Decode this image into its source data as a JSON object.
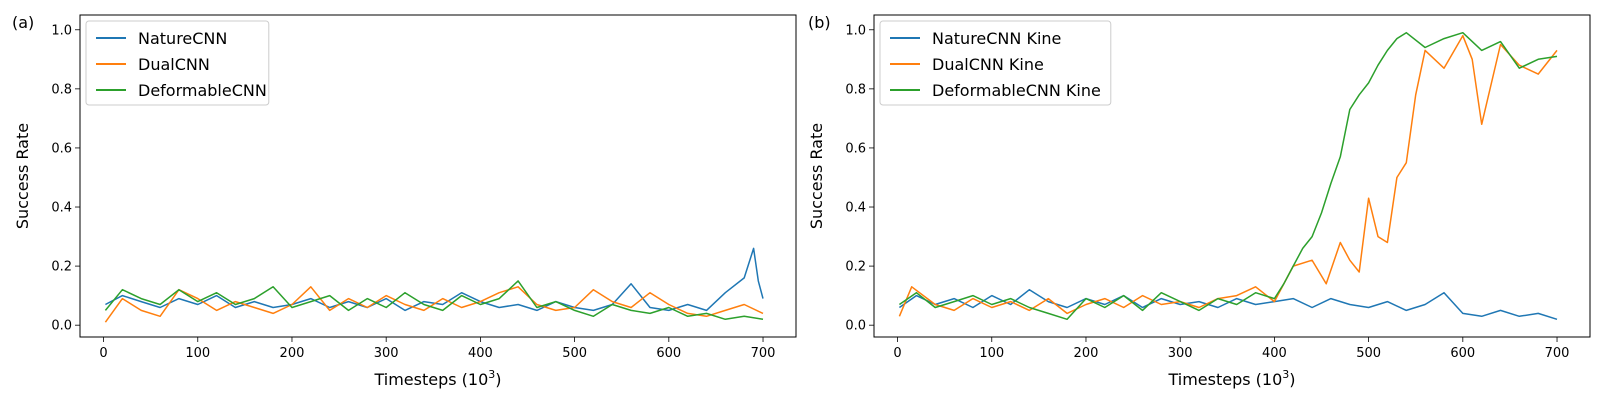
{
  "chart_data": [
    {
      "panel_label": "(a)",
      "type": "line",
      "xlabel": "Timesteps (10",
      "xlabel_sup": "3",
      "xlabel_close": ")",
      "ylabel": "Success Rate",
      "xlim": [
        -25,
        735
      ],
      "ylim": [
        -0.04,
        1.05
      ],
      "xticks": [
        0,
        100,
        200,
        300,
        400,
        500,
        600,
        700
      ],
      "yticks": [
        0.0,
        0.2,
        0.4,
        0.6,
        0.8,
        1.0
      ],
      "grid": false,
      "legend_position": "top-left",
      "series": [
        {
          "name": "NatureCNN",
          "color": "#1f77b4",
          "x": [
            2,
            20,
            40,
            60,
            80,
            100,
            120,
            140,
            160,
            180,
            200,
            220,
            240,
            260,
            280,
            300,
            320,
            340,
            360,
            380,
            400,
            420,
            440,
            460,
            480,
            500,
            520,
            540,
            560,
            580,
            600,
            620,
            640,
            660,
            680,
            690,
            695,
            700
          ],
          "values": [
            0.07,
            0.1,
            0.08,
            0.06,
            0.09,
            0.07,
            0.1,
            0.06,
            0.08,
            0.06,
            0.07,
            0.09,
            0.06,
            0.08,
            0.06,
            0.09,
            0.05,
            0.08,
            0.07,
            0.11,
            0.08,
            0.06,
            0.07,
            0.05,
            0.08,
            0.06,
            0.05,
            0.07,
            0.14,
            0.06,
            0.05,
            0.07,
            0.05,
            0.11,
            0.16,
            0.26,
            0.15,
            0.09
          ]
        },
        {
          "name": "DualCNN",
          "color": "#ff7f0e",
          "x": [
            2,
            20,
            40,
            60,
            80,
            100,
            120,
            140,
            160,
            180,
            200,
            220,
            240,
            260,
            280,
            300,
            320,
            340,
            360,
            380,
            400,
            420,
            440,
            460,
            480,
            500,
            520,
            540,
            560,
            580,
            600,
            620,
            640,
            660,
            680,
            700
          ],
          "values": [
            0.01,
            0.09,
            0.05,
            0.03,
            0.12,
            0.09,
            0.05,
            0.08,
            0.06,
            0.04,
            0.07,
            0.13,
            0.05,
            0.09,
            0.06,
            0.1,
            0.07,
            0.05,
            0.09,
            0.06,
            0.08,
            0.11,
            0.13,
            0.07,
            0.05,
            0.06,
            0.12,
            0.08,
            0.06,
            0.11,
            0.07,
            0.04,
            0.03,
            0.05,
            0.07,
            0.04
          ]
        },
        {
          "name": "DeformableCNN",
          "color": "#2ca02c",
          "x": [
            2,
            20,
            40,
            60,
            80,
            100,
            120,
            140,
            160,
            180,
            200,
            220,
            240,
            260,
            280,
            300,
            320,
            340,
            360,
            380,
            400,
            420,
            440,
            460,
            480,
            500,
            520,
            540,
            560,
            580,
            600,
            620,
            640,
            660,
            680,
            700
          ],
          "values": [
            0.05,
            0.12,
            0.09,
            0.07,
            0.12,
            0.08,
            0.11,
            0.07,
            0.09,
            0.13,
            0.06,
            0.08,
            0.1,
            0.05,
            0.09,
            0.06,
            0.11,
            0.07,
            0.05,
            0.1,
            0.07,
            0.09,
            0.15,
            0.06,
            0.08,
            0.05,
            0.03,
            0.07,
            0.05,
            0.04,
            0.06,
            0.03,
            0.04,
            0.02,
            0.03,
            0.02
          ]
        }
      ]
    },
    {
      "panel_label": "(b)",
      "type": "line",
      "xlabel": "Timesteps (10",
      "xlabel_sup": "3",
      "xlabel_close": ")",
      "ylabel": "Success Rate",
      "xlim": [
        -25,
        735
      ],
      "ylim": [
        -0.04,
        1.05
      ],
      "xticks": [
        0,
        100,
        200,
        300,
        400,
        500,
        600,
        700
      ],
      "yticks": [
        0.0,
        0.2,
        0.4,
        0.6,
        0.8,
        1.0
      ],
      "grid": false,
      "legend_position": "top-left",
      "series": [
        {
          "name": "NatureCNN Kine",
          "color": "#1f77b4",
          "x": [
            2,
            20,
            40,
            60,
            80,
            100,
            120,
            140,
            160,
            180,
            200,
            220,
            240,
            260,
            280,
            300,
            320,
            340,
            360,
            380,
            400,
            420,
            440,
            460,
            480,
            500,
            520,
            540,
            560,
            580,
            600,
            620,
            640,
            660,
            680,
            700
          ],
          "values": [
            0.06,
            0.1,
            0.07,
            0.09,
            0.06,
            0.1,
            0.07,
            0.12,
            0.08,
            0.06,
            0.09,
            0.07,
            0.1,
            0.06,
            0.09,
            0.07,
            0.08,
            0.06,
            0.09,
            0.07,
            0.08,
            0.09,
            0.06,
            0.09,
            0.07,
            0.06,
            0.08,
            0.05,
            0.07,
            0.11,
            0.04,
            0.03,
            0.05,
            0.03,
            0.04,
            0.02
          ]
        },
        {
          "name": "DualCNN Kine",
          "color": "#ff7f0e",
          "x": [
            2,
            15,
            40,
            60,
            80,
            100,
            120,
            140,
            160,
            180,
            200,
            220,
            240,
            260,
            280,
            300,
            320,
            340,
            360,
            380,
            400,
            420,
            440,
            455,
            470,
            480,
            490,
            500,
            510,
            520,
            530,
            540,
            550,
            560,
            580,
            600,
            610,
            620,
            640,
            660,
            680,
            700
          ],
          "values": [
            0.03,
            0.13,
            0.07,
            0.05,
            0.09,
            0.06,
            0.08,
            0.05,
            0.09,
            0.04,
            0.07,
            0.09,
            0.06,
            0.1,
            0.07,
            0.08,
            0.06,
            0.09,
            0.1,
            0.13,
            0.08,
            0.2,
            0.22,
            0.14,
            0.28,
            0.22,
            0.18,
            0.43,
            0.3,
            0.28,
            0.5,
            0.55,
            0.78,
            0.93,
            0.87,
            0.98,
            0.9,
            0.68,
            0.95,
            0.88,
            0.85,
            0.93
          ]
        },
        {
          "name": "DeformableCNN Kine",
          "color": "#2ca02c",
          "x": [
            2,
            20,
            40,
            60,
            80,
            100,
            120,
            140,
            160,
            180,
            200,
            220,
            240,
            260,
            280,
            300,
            320,
            340,
            360,
            380,
            400,
            410,
            420,
            430,
            440,
            450,
            460,
            470,
            480,
            490,
            500,
            510,
            520,
            530,
            540,
            560,
            580,
            600,
            620,
            640,
            660,
            680,
            700
          ],
          "values": [
            0.07,
            0.11,
            0.06,
            0.08,
            0.1,
            0.07,
            0.09,
            0.06,
            0.04,
            0.02,
            0.09,
            0.06,
            0.1,
            0.05,
            0.11,
            0.08,
            0.05,
            0.09,
            0.07,
            0.11,
            0.09,
            0.14,
            0.2,
            0.26,
            0.3,
            0.38,
            0.48,
            0.57,
            0.73,
            0.78,
            0.82,
            0.88,
            0.93,
            0.97,
            0.99,
            0.94,
            0.97,
            0.99,
            0.93,
            0.96,
            0.87,
            0.9,
            0.91
          ]
        }
      ]
    }
  ]
}
